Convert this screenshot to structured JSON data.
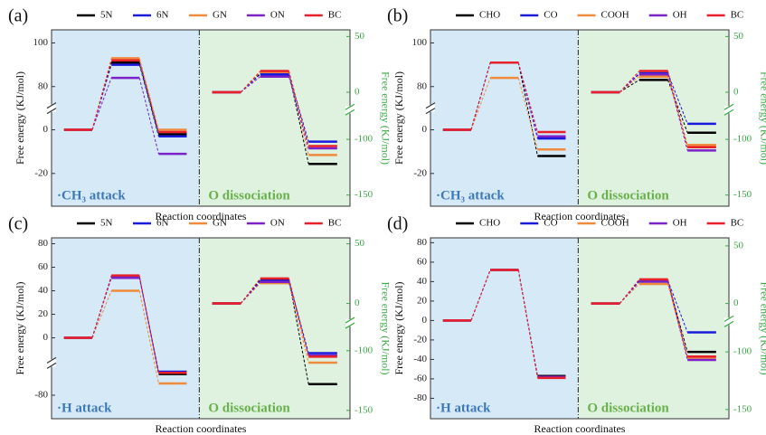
{
  "chart_data": [
    {
      "type": "energy",
      "panel_label": "(a)",
      "annotation_left": "·CH₃ attack",
      "annotation_right": "O dissociation",
      "xlabel": "Reaction coordinates",
      "ylabel": "Free energy (KJ/mol)",
      "y2label": "Free energy (KJ/mol)",
      "ylim": [
        -35,
        106
      ],
      "ybreak": [
        7,
        73
      ],
      "yticks": [
        -20,
        0,
        80,
        100
      ],
      "y2lim": [
        -160,
        56
      ],
      "y2break": [
        -79,
        -10
      ],
      "y2ticks": [
        -150,
        -100,
        0,
        50
      ],
      "series": [
        {
          "name": "5N",
          "color": "#000000",
          "values": [
            0,
            91,
            -2
          ]
        },
        {
          "name": "6N",
          "color": "#1a1adb",
          "values": [
            0,
            90,
            -3
          ]
        },
        {
          "name": "GN",
          "color": "#f08a3c",
          "values": [
            0,
            93,
            0
          ]
        },
        {
          "name": "ON",
          "color": "#7a22c8",
          "values": [
            0,
            84,
            -11
          ]
        },
        {
          "name": "BC",
          "color": "#e8202a",
          "values": [
            0,
            92,
            -1
          ]
        },
        {
          "name": "5N",
          "color": "#000000",
          "axis": "y2",
          "values": [
            0,
            17,
            -122
          ]
        },
        {
          "name": "6N",
          "color": "#1a1adb",
          "axis": "y2",
          "values": [
            0,
            16,
            -102
          ]
        },
        {
          "name": "GN",
          "color": "#f08a3c",
          "axis": "y2",
          "values": [
            0,
            18,
            -114
          ]
        },
        {
          "name": "ON",
          "color": "#7a22c8",
          "axis": "y2",
          "values": [
            0,
            14,
            -108
          ]
        },
        {
          "name": "BC",
          "color": "#e8202a",
          "axis": "y2",
          "values": [
            0,
            19,
            -106
          ]
        }
      ]
    },
    {
      "type": "energy",
      "panel_label": "(b)",
      "annotation_left": "·CH₃ attack",
      "annotation_right": "O dissociation",
      "xlabel": "Reaction coordinates",
      "ylabel": "Free energy (KJ/mol)",
      "y2label": "Free energy (KJ/mol)",
      "ylim": [
        -35,
        106
      ],
      "ybreak": [
        7,
        73
      ],
      "yticks": [
        -20,
        0,
        80,
        100
      ],
      "y2lim": [
        -160,
        56
      ],
      "y2break": [
        -79,
        -10
      ],
      "y2ticks": [
        -150,
        -100,
        0,
        50
      ],
      "series": [
        {
          "name": "CHO",
          "color": "#000000",
          "values": [
            0,
            91,
            -12
          ]
        },
        {
          "name": "CO",
          "color": "#1a1adb",
          "values": [
            0,
            91,
            -4
          ]
        },
        {
          "name": "COOH",
          "color": "#f08a3c",
          "values": [
            0,
            84,
            -9
          ]
        },
        {
          "name": "OH",
          "color": "#7a22c8",
          "values": [
            0,
            91,
            -3
          ]
        },
        {
          "name": "BC",
          "color": "#e8202a",
          "values": [
            0,
            91,
            -1
          ]
        },
        {
          "name": "CHO",
          "color": "#000000",
          "axis": "y2",
          "values": [
            0,
            11,
            -94
          ]
        },
        {
          "name": "CO",
          "color": "#1a1adb",
          "axis": "y2",
          "values": [
            0,
            17,
            -86
          ]
        },
        {
          "name": "COOH",
          "color": "#f08a3c",
          "axis": "y2",
          "values": [
            0,
            14,
            -105
          ]
        },
        {
          "name": "OH",
          "color": "#7a22c8",
          "axis": "y2",
          "values": [
            0,
            16,
            -110
          ]
        },
        {
          "name": "BC",
          "color": "#e8202a",
          "axis": "y2",
          "values": [
            0,
            19,
            -107
          ]
        }
      ]
    },
    {
      "type": "energy",
      "panel_label": "(c)",
      "annotation_left": "·H attack",
      "annotation_right": "O dissociation",
      "xlabel": "Reaction coordinates",
      "ylabel": "Free energy (KJ/mol)",
      "y2label": "Free energy (KJ/mol)",
      "ylim": [
        -100,
        85
      ],
      "ybreak": [
        -58,
        -16
      ],
      "yticks": [
        -80,
        0,
        20,
        40,
        60,
        80
      ],
      "y2lim": [
        -157,
        55
      ],
      "y2break": [
        -82,
        -11
      ],
      "y2ticks": [
        -150,
        -100,
        0,
        50
      ],
      "series": [
        {
          "name": "5N",
          "color": "#000000",
          "values": [
            0,
            52,
            -62
          ]
        },
        {
          "name": "6N",
          "color": "#1a1adb",
          "values": [
            0,
            52,
            -60
          ]
        },
        {
          "name": "GN",
          "color": "#f08a3c",
          "values": [
            0,
            40,
            -70
          ]
        },
        {
          "name": "ON",
          "color": "#7a22c8",
          "values": [
            0,
            51,
            -61
          ]
        },
        {
          "name": "BC",
          "color": "#e8202a",
          "values": [
            0,
            53,
            -61
          ]
        },
        {
          "name": "5N",
          "color": "#000000",
          "axis": "y2",
          "values": [
            0,
            20,
            -128
          ]
        },
        {
          "name": "6N",
          "color": "#1a1adb",
          "axis": "y2",
          "values": [
            0,
            19,
            -102
          ]
        },
        {
          "name": "GN",
          "color": "#f08a3c",
          "axis": "y2",
          "values": [
            0,
            17,
            -110
          ]
        },
        {
          "name": "ON",
          "color": "#7a22c8",
          "axis": "y2",
          "values": [
            0,
            18,
            -104
          ]
        },
        {
          "name": "BC",
          "color": "#e8202a",
          "axis": "y2",
          "values": [
            0,
            21,
            -105
          ]
        }
      ]
    },
    {
      "type": "energy",
      "panel_label": "(d)",
      "annotation_left": "·H attack",
      "annotation_right": "O dissociation",
      "xlabel": "Reaction coordinates",
      "ylabel": "Free energy (KJ/mol)",
      "y2label": "Free energy (KJ/mol)",
      "ylim": [
        -101,
        85
      ],
      "yticks": [
        -80,
        -60,
        -40,
        -20,
        0,
        20,
        40,
        60,
        80
      ],
      "y2lim": [
        -158,
        57
      ],
      "y2break": [
        -79,
        -10
      ],
      "y2ticks": [
        -150,
        -100,
        0,
        50
      ],
      "series": [
        {
          "name": "CHO",
          "color": "#000000",
          "values": [
            0,
            52,
            -57
          ]
        },
        {
          "name": "CO",
          "color": "#1a1adb",
          "values": [
            0,
            52,
            -58
          ]
        },
        {
          "name": "COOH",
          "color": "#f08a3c",
          "values": [
            0,
            52,
            -58
          ]
        },
        {
          "name": "OH",
          "color": "#7a22c8",
          "values": [
            0,
            52,
            -58
          ]
        },
        {
          "name": "BC",
          "color": "#e8202a",
          "values": [
            0,
            52,
            -59
          ]
        },
        {
          "name": "CHO",
          "color": "#000000",
          "axis": "y2",
          "values": [
            0,
            19,
            -100
          ]
        },
        {
          "name": "CO",
          "color": "#1a1adb",
          "axis": "y2",
          "values": [
            0,
            20,
            -83
          ]
        },
        {
          "name": "COOH",
          "color": "#f08a3c",
          "axis": "y2",
          "values": [
            0,
            17,
            -105
          ]
        },
        {
          "name": "OH",
          "color": "#7a22c8",
          "axis": "y2",
          "values": [
            0,
            19,
            -107
          ]
        },
        {
          "name": "BC",
          "color": "#e8202a",
          "axis": "y2",
          "values": [
            0,
            21,
            -104
          ]
        }
      ]
    }
  ]
}
